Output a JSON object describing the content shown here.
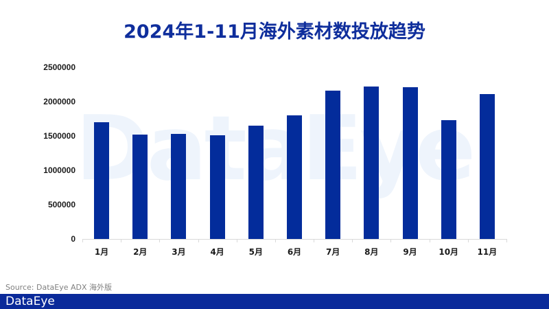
{
  "title": "2024年1-11月海外素材数投放趋势",
  "watermark": "DataEye",
  "source": "Source: DataEye ADX 海外版",
  "footer": {
    "logo": "DataEye"
  },
  "colors": {
    "bar": "#032c9b",
    "title": "#0f2e9c",
    "footer": "#0a2a9a"
  },
  "chart_data": {
    "type": "bar",
    "title": "2024年1-11月海外素材数投放趋势",
    "xlabel": "",
    "ylabel": "",
    "categories": [
      "1月",
      "2月",
      "3月",
      "4月",
      "5月",
      "6月",
      "7月",
      "8月",
      "9月",
      "10月",
      "11月"
    ],
    "values": [
      1700000,
      1520000,
      1530000,
      1510000,
      1650000,
      1800000,
      2160000,
      2220000,
      2210000,
      1730000,
      2110000
    ],
    "ylim": [
      0,
      2500000
    ],
    "yticks": [
      0,
      500000,
      1000000,
      1500000,
      2000000,
      2500000
    ],
    "ytick_labels": [
      "0",
      "500000",
      "1000000",
      "1500000",
      "2000000",
      "2500000"
    ],
    "grid": false,
    "legend": null
  }
}
